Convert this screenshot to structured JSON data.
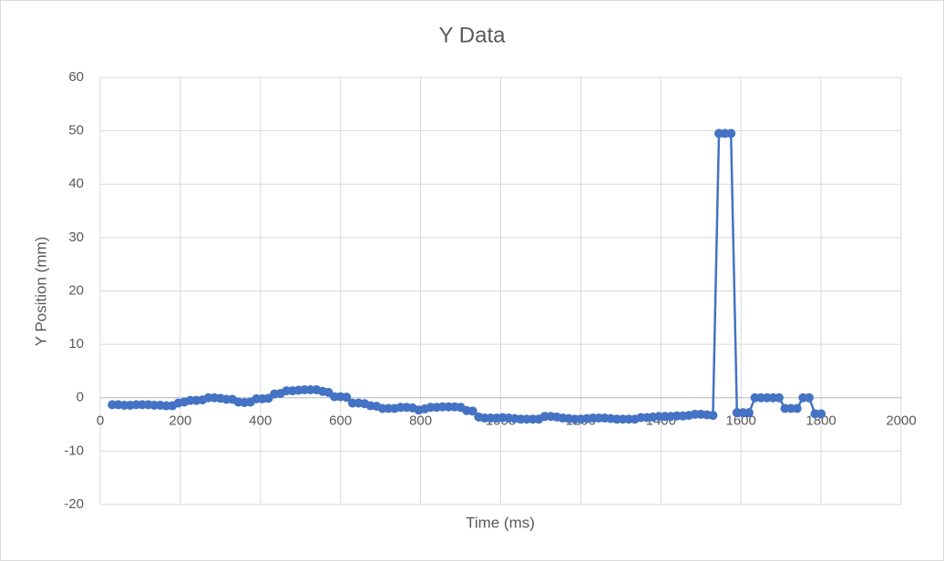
{
  "chart_data": {
    "type": "scatter",
    "title": "Y Data",
    "x_label": "Time (ms)",
    "y_label": "Y Position (mm)",
    "x": [
      30,
      45,
      60,
      75,
      90,
      105,
      120,
      135,
      150,
      165,
      180,
      195,
      210,
      225,
      240,
      255,
      270,
      285,
      300,
      315,
      330,
      345,
      360,
      375,
      390,
      405,
      420,
      435,
      450,
      465,
      480,
      495,
      510,
      525,
      540,
      555,
      570,
      585,
      600,
      615,
      630,
      645,
      660,
      675,
      690,
      705,
      720,
      735,
      750,
      765,
      780,
      795,
      810,
      825,
      840,
      855,
      870,
      885,
      900,
      915,
      930,
      945,
      960,
      975,
      990,
      1005,
      1020,
      1035,
      1050,
      1065,
      1080,
      1095,
      1110,
      1125,
      1140,
      1155,
      1170,
      1185,
      1200,
      1215,
      1230,
      1245,
      1260,
      1275,
      1290,
      1305,
      1320,
      1335,
      1350,
      1365,
      1380,
      1395,
      1410,
      1425,
      1440,
      1455,
      1470,
      1485,
      1500,
      1515,
      1530,
      1545,
      1560,
      1575,
      1590,
      1605,
      1620,
      1635,
      1650,
      1665,
      1680,
      1695,
      1710,
      1725,
      1740,
      1755,
      1770,
      1785,
      1800
    ],
    "series": [
      {
        "name": "Y Data",
        "color": "#4472c4",
        "values": [
          -1.3,
          -1.3,
          -1.4,
          -1.4,
          -1.3,
          -1.3,
          -1.3,
          -1.4,
          -1.4,
          -1.5,
          -1.5,
          -1.0,
          -0.8,
          -0.5,
          -0.5,
          -0.4,
          0,
          0,
          -0.1,
          -0.3,
          -0.3,
          -0.8,
          -0.9,
          -0.8,
          -0.2,
          -0.2,
          -0.1,
          0.7,
          0.8,
          1.3,
          1.3,
          1.4,
          1.5,
          1.5,
          1.5,
          1.2,
          1.0,
          0.2,
          0.2,
          0.1,
          -1.0,
          -1.0,
          -1.1,
          -1.5,
          -1.6,
          -2.0,
          -2.0,
          -2.0,
          -1.8,
          -1.8,
          -1.9,
          -2.3,
          -2.1,
          -1.8,
          -1.8,
          -1.7,
          -1.7,
          -1.7,
          -1.8,
          -2.4,
          -2.5,
          -3.6,
          -3.8,
          -3.8,
          -3.8,
          -3.7,
          -3.8,
          -3.9,
          -4.0,
          -4.0,
          -4.0,
          -4.0,
          -3.5,
          -3.5,
          -3.6,
          -3.8,
          -3.9,
          -4.0,
          -4.0,
          -3.9,
          -3.8,
          -3.8,
          -3.8,
          -3.9,
          -4.0,
          -4.0,
          -4.0,
          -4.0,
          -3.7,
          -3.7,
          -3.6,
          -3.5,
          -3.5,
          -3.5,
          -3.4,
          -3.4,
          -3.3,
          -3.1,
          -3.1,
          -3.2,
          -3.3,
          49.5,
          49.5,
          49.5,
          -2.8,
          -2.8,
          -2.8,
          0,
          0,
          0,
          0,
          0,
          -2.0,
          -2.0,
          -2.0,
          0,
          0,
          -3.0,
          -3.0
        ]
      }
    ],
    "xlim": [
      0,
      2000
    ],
    "xticks": [
      0,
      200,
      400,
      600,
      800,
      1000,
      1200,
      1400,
      1600,
      1800,
      2000
    ],
    "ylim": [
      -20,
      60
    ],
    "yticks": [
      -20,
      -10,
      0,
      10,
      20,
      30,
      40,
      50,
      60
    ],
    "grid": true
  }
}
